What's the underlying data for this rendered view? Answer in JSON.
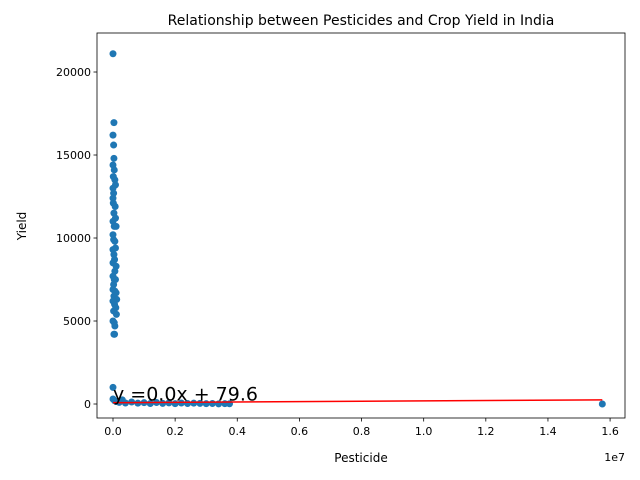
{
  "chart_data": {
    "type": "scatter",
    "title": "Relationship between Pesticides and Crop Yield in India",
    "x_label": "Pesticide",
    "y_label": "Yield",
    "x_offset_label": "1e7",
    "xlim": [
      -0.0515,
      1.648
    ],
    "ylim": [
      -843,
      22350
    ],
    "xticks": [
      {
        "value": 0,
        "label": "0.0"
      },
      0.2,
      0.4,
      0.6,
      0.8,
      {
        "value": 1,
        "label": "1.0"
      },
      1.2,
      1.4,
      1.6
    ],
    "yticks": [
      0,
      5000,
      10000,
      15000,
      20000
    ],
    "grid": false,
    "series": [
      {
        "name": "Yield",
        "color": "#1f77b4",
        "x": [
          0.0,
          0.003,
          0.0,
          0.002,
          0.003,
          0.0,
          0.004,
          0.001,
          0.006,
          0.008,
          0.0,
          0.002,
          0.0,
          0.001,
          0.007,
          0.003,
          0.008,
          0.0,
          0.004,
          0.01,
          0.0,
          0.002,
          0.006,
          0.008,
          0.0,
          0.003,
          0.005,
          0.0,
          0.01,
          0.006,
          0.0,
          0.004,
          0.008,
          0.002,
          0.0,
          0.006,
          0.01,
          0.003,
          0.012,
          0.0,
          0.005,
          0.009,
          0.002,
          0.011,
          0.0,
          0.004,
          0.006,
          0.003,
          0.005,
          0.0,
          0.0,
          0.005,
          0.02,
          0.04,
          0.06,
          0.08,
          0.1,
          0.12,
          0.14,
          0.16,
          0.18,
          0.2,
          0.22,
          0.24,
          0.26,
          0.28,
          0.3,
          0.32,
          0.34,
          0.36,
          0.375,
          0.01,
          0.03,
          1.575
        ],
        "values": [
          21100,
          16950,
          16200,
          15600,
          14800,
          14400,
          14100,
          13700,
          13500,
          13200,
          13000,
          12700,
          12400,
          12100,
          11900,
          11500,
          11200,
          11000,
          10700,
          10700,
          10200,
          9900,
          9800,
          9400,
          9300,
          9000,
          8700,
          8500,
          8300,
          8000,
          7700,
          7500,
          7500,
          7200,
          6900,
          6800,
          6700,
          6500,
          6300,
          6200,
          6000,
          5800,
          5600,
          5400,
          5000,
          4900,
          4700,
          4200,
          4200,
          1000,
          300,
          200,
          100,
          60,
          120,
          50,
          80,
          30,
          90,
          40,
          70,
          20,
          60,
          30,
          50,
          40,
          20,
          30,
          10,
          20,
          15,
          150,
          250,
          0
        ]
      },
      {
        "name": "Regression",
        "color": "#ff0000",
        "kind": "line",
        "x": [
          0.0,
          1.575
        ],
        "values": [
          79.6,
          250
        ]
      }
    ],
    "annotation": {
      "text": "y =0.0x + 79.6",
      "color": "#ff0000"
    }
  }
}
